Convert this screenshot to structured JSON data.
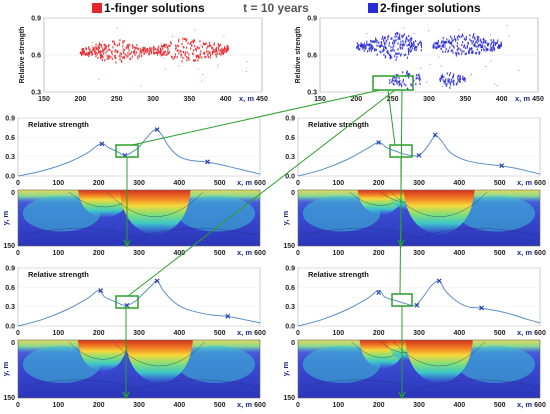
{
  "header": {
    "time_label": "t = 10 years",
    "legend_1": "1-finger solutions",
    "legend_2": "2-finger solutions"
  },
  "colors": {
    "finger1": "#e8262a",
    "finger2": "#2a2ad8",
    "curve": "#5a8fc8",
    "marker": "#2a3fb0",
    "highlight": "#2aa02a",
    "hot": "#c8301e",
    "field_base": "#3a44cc"
  },
  "chart_data": [
    {
      "id": "scatter-1",
      "type": "scatter",
      "series_name": "1-finger solutions",
      "ylabel": "Relative strength",
      "xlabel": "x, m",
      "xlim": [
        150,
        450
      ],
      "ylim": [
        0.3,
        0.9
      ],
      "xticks": [
        150,
        200,
        250,
        300,
        350,
        400,
        450
      ],
      "yticks": [
        0.3,
        0.6,
        0.9
      ],
      "lobes": [
        {
          "xmin": 200,
          "xmax": 300,
          "ymin": 0.54,
          "ymax": 0.72,
          "peak_x": 250
        },
        {
          "xmin": 300,
          "xmax": 405,
          "ymin": 0.54,
          "ymax": 0.74,
          "peak_x": 352
        }
      ]
    },
    {
      "id": "scatter-2",
      "type": "scatter",
      "series_name": "2-finger solutions",
      "ylabel": "Relative strength",
      "xlabel": "x, m",
      "xlim": [
        150,
        450
      ],
      "ylim": [
        0.3,
        0.9
      ],
      "xticks": [
        150,
        200,
        250,
        300,
        350,
        400,
        450
      ],
      "yticks": [
        0.3,
        0.6,
        0.9
      ],
      "lobes": [
        {
          "xmin": 200,
          "xmax": 290,
          "ymin": 0.56,
          "ymax": 0.78,
          "peak_x": 255
        },
        {
          "xmin": 305,
          "xmax": 400,
          "ymin": 0.58,
          "ymax": 0.78,
          "peak_x": 350
        },
        {
          "xmin": 245,
          "xmax": 290,
          "ymin": 0.32,
          "ymax": 0.48,
          "peak_x": 268
        },
        {
          "xmin": 315,
          "xmax": 350,
          "ymin": 0.34,
          "ymax": 0.46,
          "peak_x": 330
        }
      ]
    },
    {
      "id": "profile-1-top",
      "type": "line",
      "title": "Relative strength",
      "xlabel": "x, m",
      "xlim": [
        0,
        600
      ],
      "ylim": [
        0,
        0.9
      ],
      "xticks": [
        0,
        100,
        200,
        300,
        400,
        500,
        600
      ],
      "yticks": [
        0.0,
        0.3,
        0.6,
        0.9
      ],
      "x": [
        0,
        60,
        120,
        170,
        205,
        225,
        245,
        265,
        280,
        300,
        320,
        340,
        355,
        375,
        400,
        430,
        465,
        500,
        540,
        580,
        600
      ],
      "y": [
        0.0,
        0.08,
        0.2,
        0.35,
        0.5,
        0.44,
        0.38,
        0.32,
        0.36,
        0.45,
        0.6,
        0.72,
        0.65,
        0.45,
        0.3,
        0.24,
        0.22,
        0.18,
        0.12,
        0.06,
        0.03
      ],
      "markers": [
        {
          "x": 208,
          "y": 0.5
        },
        {
          "x": 265,
          "y": 0.32
        },
        {
          "x": 345,
          "y": 0.72
        },
        {
          "x": 470,
          "y": 0.22
        }
      ]
    },
    {
      "id": "profile-2-top",
      "type": "line",
      "title": "Relative strength",
      "xlabel": "x, m",
      "xlim": [
        0,
        600
      ],
      "ylim": [
        0,
        0.9
      ],
      "xticks": [
        0,
        100,
        200,
        300,
        400,
        500,
        600
      ],
      "yticks": [
        0.0,
        0.3,
        0.6,
        0.9
      ],
      "x": [
        0,
        60,
        120,
        170,
        200,
        220,
        245,
        270,
        300,
        320,
        340,
        355,
        375,
        400,
        430,
        470,
        500,
        540,
        580,
        600
      ],
      "y": [
        0.0,
        0.1,
        0.25,
        0.42,
        0.52,
        0.44,
        0.38,
        0.33,
        0.32,
        0.45,
        0.62,
        0.55,
        0.38,
        0.28,
        0.22,
        0.18,
        0.16,
        0.12,
        0.06,
        0.03
      ],
      "markers": [
        {
          "x": 200,
          "y": 0.52
        },
        {
          "x": 300,
          "y": 0.32
        },
        {
          "x": 340,
          "y": 0.64
        },
        {
          "x": 505,
          "y": 0.16
        }
      ]
    },
    {
      "id": "profile-1-bottom",
      "type": "line",
      "title": "Relative strength",
      "xlabel": "x, m",
      "xlim": [
        0,
        600
      ],
      "ylim": [
        0,
        0.9
      ],
      "xticks": [
        0,
        100,
        200,
        300,
        400,
        500,
        600
      ],
      "yticks": [
        0.0,
        0.3,
        0.6,
        0.9
      ],
      "x": [
        0,
        60,
        120,
        170,
        200,
        215,
        240,
        265,
        290,
        310,
        330,
        345,
        360,
        385,
        410,
        440,
        480,
        520,
        560,
        600
      ],
      "y": [
        0.0,
        0.1,
        0.25,
        0.42,
        0.55,
        0.45,
        0.38,
        0.32,
        0.38,
        0.5,
        0.62,
        0.7,
        0.55,
        0.38,
        0.28,
        0.22,
        0.17,
        0.15,
        0.1,
        0.05
      ],
      "markers": [
        {
          "x": 205,
          "y": 0.55
        },
        {
          "x": 270,
          "y": 0.32
        },
        {
          "x": 345,
          "y": 0.7
        },
        {
          "x": 520,
          "y": 0.15
        }
      ]
    },
    {
      "id": "profile-2-bottom",
      "type": "line",
      "title": "Relative strength",
      "xlabel": "x, m",
      "xlim": [
        0,
        600
      ],
      "ylim": [
        0,
        0.9
      ],
      "xticks": [
        0,
        100,
        200,
        300,
        400,
        500,
        600
      ],
      "yticks": [
        0.0,
        0.3,
        0.6,
        0.9
      ],
      "x": [
        0,
        60,
        120,
        170,
        200,
        215,
        240,
        265,
        290,
        310,
        330,
        350,
        365,
        390,
        420,
        450,
        490,
        530,
        570,
        600
      ],
      "y": [
        0.0,
        0.1,
        0.25,
        0.42,
        0.55,
        0.45,
        0.4,
        0.35,
        0.32,
        0.45,
        0.62,
        0.7,
        0.55,
        0.4,
        0.3,
        0.28,
        0.24,
        0.18,
        0.1,
        0.05
      ],
      "markers": [
        {
          "x": 200,
          "y": 0.52
        },
        {
          "x": 295,
          "y": 0.32
        },
        {
          "x": 350,
          "y": 0.7
        },
        {
          "x": 455,
          "y": 0.28
        }
      ]
    },
    {
      "id": "field-1-top",
      "type": "heatmap",
      "xlabel": "x, m",
      "ylabel": "y, m",
      "xlim": [
        0,
        600
      ],
      "ylim": [
        150,
        0
      ],
      "xticks": [
        0,
        100,
        200,
        300,
        400,
        500,
        600
      ],
      "yticks": [
        0,
        150
      ],
      "fingers": [
        {
          "x": 215,
          "width": 30,
          "depth": 0.5
        },
        {
          "x": 340,
          "width": 40,
          "depth": 0.8
        }
      ]
    },
    {
      "id": "field-2-top",
      "type": "heatmap",
      "xlabel": "x, m",
      "ylabel": "y, m",
      "xlim": [
        0,
        600
      ],
      "ylim": [
        150,
        0
      ],
      "xticks": [
        0,
        100,
        200,
        300,
        400,
        500,
        600
      ],
      "yticks": [
        0,
        150
      ],
      "fingers": [
        {
          "x": 205,
          "width": 26,
          "depth": 0.45
        },
        {
          "x": 270,
          "width": 22,
          "depth": 0.35
        },
        {
          "x": 350,
          "width": 40,
          "depth": 0.8
        }
      ]
    },
    {
      "id": "field-1-bottom",
      "type": "heatmap",
      "xlabel": "x, m",
      "ylabel": "y, m",
      "xlim": [
        0,
        600
      ],
      "ylim": [
        150,
        0
      ],
      "xticks": [
        0,
        100,
        200,
        300,
        400,
        500,
        600
      ],
      "yticks": [
        0,
        150
      ],
      "fingers": [
        {
          "x": 210,
          "width": 28,
          "depth": 0.55
        },
        {
          "x": 350,
          "width": 38,
          "depth": 0.75
        }
      ]
    },
    {
      "id": "field-2-bottom",
      "type": "heatmap",
      "xlabel": "x, m",
      "ylabel": "y, m",
      "xlim": [
        0,
        600
      ],
      "ylim": [
        150,
        0
      ],
      "xticks": [
        0,
        100,
        200,
        300,
        400,
        500,
        600
      ],
      "yticks": [
        0,
        150
      ],
      "fingers": [
        {
          "x": 210,
          "width": 26,
          "depth": 0.5
        },
        {
          "x": 265,
          "width": 20,
          "depth": 0.35
        },
        {
          "x": 350,
          "width": 38,
          "depth": 0.75
        }
      ]
    }
  ]
}
